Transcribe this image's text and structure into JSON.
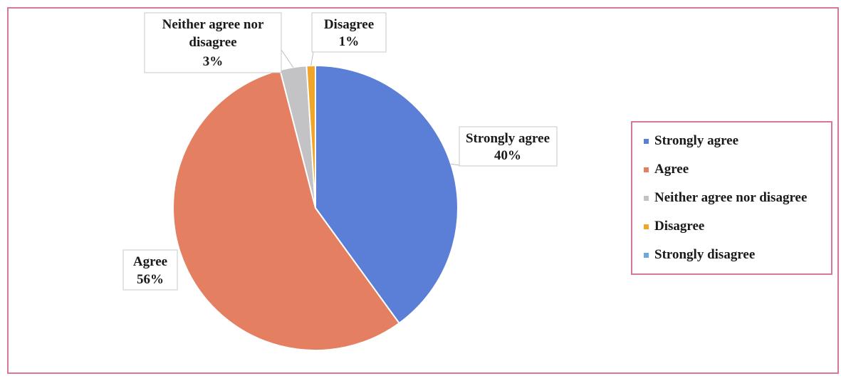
{
  "chart_data": {
    "type": "pie",
    "title": "",
    "start_angle_deg": 0,
    "direction": "clockwise",
    "slices": [
      {
        "label": "Strongly agree",
        "value": 40,
        "data_label": "Strongly agree",
        "percent_label": "40%",
        "color": "#5b7fd6"
      },
      {
        "label": "Agree",
        "value": 56,
        "data_label": "Agree",
        "percent_label": "56%",
        "color": "#e57f62"
      },
      {
        "label": "Neither agree nor disagree",
        "value": 3,
        "data_label": "Neither agree nor disagree",
        "percent_label": "3%",
        "color": "#c3c3c6"
      },
      {
        "label": "Disagree",
        "value": 1,
        "data_label": "Disagree",
        "percent_label": "1%",
        "color": "#f0a52b"
      },
      {
        "label": "Strongly disagree",
        "value": 0,
        "color": "#6fa8dc"
      }
    ],
    "legend": {
      "position": "right",
      "entries": [
        "Strongly agree",
        "Agree",
        "Neither agree nor disagree",
        "Disagree",
        "Strongly disagree"
      ]
    }
  },
  "colors": {
    "frame_border": "#d9779b",
    "callout_border": "#c9c9c9"
  }
}
